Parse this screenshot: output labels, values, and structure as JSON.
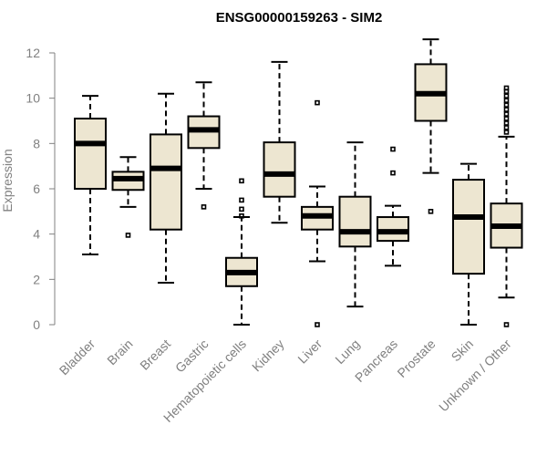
{
  "chart_data": {
    "type": "boxplot",
    "title": "ENSG00000159263 - SIM2",
    "xlabel": "",
    "ylabel": "Expression",
    "ylim": [
      0,
      12
    ],
    "yticks": [
      "0",
      "2",
      "4",
      "6",
      "8",
      "10",
      "12"
    ],
    "box_color": "#ede6d1",
    "categories": [
      "Bladder",
      "Brain",
      "Breast",
      "Gastric",
      "Hematopoietic cells",
      "Kidney",
      "Liver",
      "Lung",
      "Pancreas",
      "Prostate",
      "Skin",
      "Unknown / Other"
    ],
    "boxes": [
      {
        "name": "Bladder",
        "whisker_low": 3.1,
        "q1": 6.0,
        "median": 8.0,
        "q3": 9.1,
        "whisker_high": 10.1,
        "outliers": []
      },
      {
        "name": "Brain",
        "whisker_low": 5.2,
        "q1": 5.95,
        "median": 6.45,
        "q3": 6.75,
        "whisker_high": 7.4,
        "outliers": [
          3.95
        ]
      },
      {
        "name": "Breast",
        "whisker_low": 1.85,
        "q1": 4.2,
        "median": 6.9,
        "q3": 8.4,
        "whisker_high": 10.2,
        "outliers": []
      },
      {
        "name": "Gastric",
        "whisker_low": 6.0,
        "q1": 7.8,
        "median": 8.6,
        "q3": 9.2,
        "whisker_high": 10.7,
        "outliers": [
          5.2
        ]
      },
      {
        "name": "Hematopoietic cells",
        "whisker_low": 0.0,
        "q1": 1.7,
        "median": 2.3,
        "q3": 2.95,
        "whisker_high": 4.75,
        "outliers": [
          4.8,
          5.1,
          5.5,
          6.35
        ]
      },
      {
        "name": "Kidney",
        "whisker_low": 4.5,
        "q1": 5.65,
        "median": 6.65,
        "q3": 8.05,
        "whisker_high": 11.6,
        "outliers": []
      },
      {
        "name": "Liver",
        "whisker_low": 2.8,
        "q1": 4.2,
        "median": 4.8,
        "q3": 5.2,
        "whisker_high": 6.1,
        "outliers": [
          0.0,
          9.8
        ]
      },
      {
        "name": "Lung",
        "whisker_low": 0.8,
        "q1": 3.45,
        "median": 4.1,
        "q3": 5.65,
        "whisker_high": 8.05,
        "outliers": []
      },
      {
        "name": "Pancreas",
        "whisker_low": 2.6,
        "q1": 3.7,
        "median": 4.1,
        "q3": 4.75,
        "whisker_high": 5.25,
        "outliers": [
          6.7,
          7.75
        ]
      },
      {
        "name": "Prostate",
        "whisker_low": 6.7,
        "q1": 9.0,
        "median": 10.2,
        "q3": 11.5,
        "whisker_high": 12.6,
        "outliers": [
          5.0
        ]
      },
      {
        "name": "Skin",
        "whisker_low": 0.0,
        "q1": 2.25,
        "median": 4.75,
        "q3": 6.4,
        "whisker_high": 7.1,
        "outliers": []
      },
      {
        "name": "Unknown / Other",
        "whisker_low": 1.2,
        "q1": 3.4,
        "median": 4.35,
        "q3": 5.35,
        "whisker_high": 8.3,
        "outliers": [
          0.0,
          8.5,
          8.7,
          8.9,
          9.1,
          9.3,
          9.5,
          9.7,
          9.9,
          10.1,
          10.3,
          10.45
        ]
      }
    ]
  }
}
